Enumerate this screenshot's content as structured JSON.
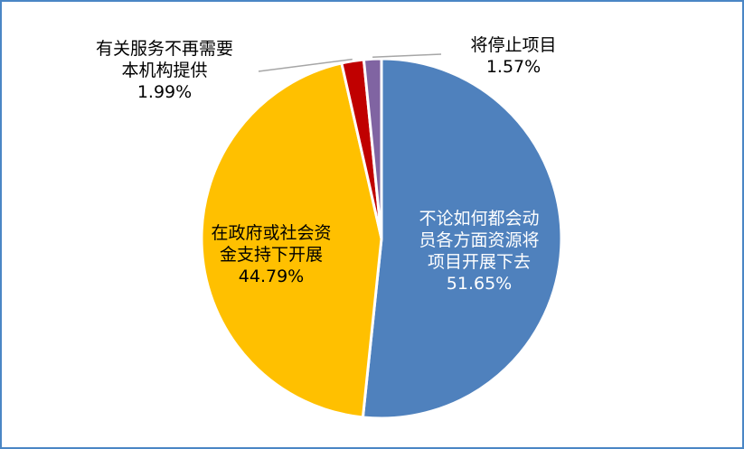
{
  "chart_data": {
    "type": "pie",
    "title": "",
    "slices": [
      {
        "label_lines": [
          "不论如何都会动",
          "员各方面资源将",
          "项目开展下去"
        ],
        "percent_text": "51.65%",
        "value": 51.65,
        "color": "#4f81bd"
      },
      {
        "label_lines": [
          "在政府或社会资",
          "金支持下开展"
        ],
        "percent_text": "44.79%",
        "value": 44.79,
        "color": "#ffc000"
      },
      {
        "label_lines": [
          "有关服务不再需要",
          "本机构提供"
        ],
        "percent_text": "1.99%",
        "value": 1.99,
        "color": "#c00000"
      },
      {
        "label_lines": [
          "将停止项目"
        ],
        "percent_text": "1.57%",
        "value": 1.57,
        "color": "#8064a2"
      }
    ],
    "legend": "none"
  }
}
